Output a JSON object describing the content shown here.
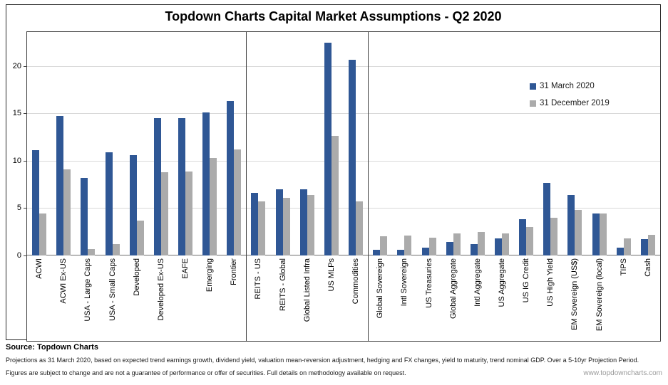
{
  "title": "Topdown Charts Capital Market Assumptions - Q2 2020",
  "chart_data": {
    "type": "bar",
    "title": "Topdown Charts Capital Market Assumptions - Q2 2020",
    "categories": [
      "ACWI",
      "ACWI Ex-US",
      "USA - Large Caps",
      "USA - Small Caps",
      "Developed",
      "Developed Ex-US",
      "EAFE",
      "Emerging",
      "Frontier",
      "REITS - US",
      "REITS - Global",
      "Global Listed Infra",
      "US MLPs",
      "Commodities",
      "Global Sovereign",
      "Intl Sovereign",
      "US Treasuries",
      "Global Aggregate",
      "Intl Aggregate",
      "US Aggregate",
      "US IG Credit",
      "US High Yield",
      "EM Sovereign (US$)",
      "EM Sovereign (local)",
      "TIPS",
      "Cash"
    ],
    "series": [
      {
        "name": "31 March 2020",
        "color": "#2f5795",
        "values": [
          11.1,
          14.7,
          8.2,
          10.9,
          10.6,
          14.5,
          14.5,
          15.1,
          16.3,
          6.6,
          7.0,
          7.0,
          22.5,
          20.7,
          0.6,
          0.6,
          0.8,
          1.4,
          1.2,
          1.8,
          3.8,
          7.7,
          6.4,
          4.4,
          0.8,
          1.7
        ]
      },
      {
        "name": "31 December 2019",
        "color": "#ababab",
        "values": [
          4.4,
          9.1,
          0.7,
          1.2,
          3.7,
          8.8,
          8.9,
          10.3,
          11.2,
          5.7,
          6.1,
          6.4,
          12.6,
          5.7,
          2.0,
          2.1,
          1.9,
          2.3,
          2.5,
          2.3,
          3.0,
          4.0,
          4.8,
          4.4,
          1.8,
          2.2
        ]
      }
    ],
    "ylim": [
      0,
      23.6
    ],
    "yticks": [
      0,
      5,
      10,
      15,
      20
    ],
    "xlabel": "",
    "ylabel": "",
    "grid": true,
    "legend_position": "inside-top-right",
    "section_dividers_after_index": [
      8,
      13
    ],
    "bar_colors": {
      "accent_blue": "#2f5795",
      "neutral_gray": "#ababab"
    },
    "gridline_color": "#d9d9d9"
  },
  "footer": {
    "source_label": "Source: Topdown Charts",
    "line1": "Projections as 31 March 2020, based on expected trend earnings growth, dividend yield, valuation mean-reversion adjustment, hedging and FX changes, yield to maturity, trend nominal GDP. Over a  5-10yr Projection Period.",
    "line2": "Figures are subject to change and are not a guarantee of performance or offer of securities.  Full details on methodology available on request.",
    "website": "www.topdowncharts.com"
  }
}
